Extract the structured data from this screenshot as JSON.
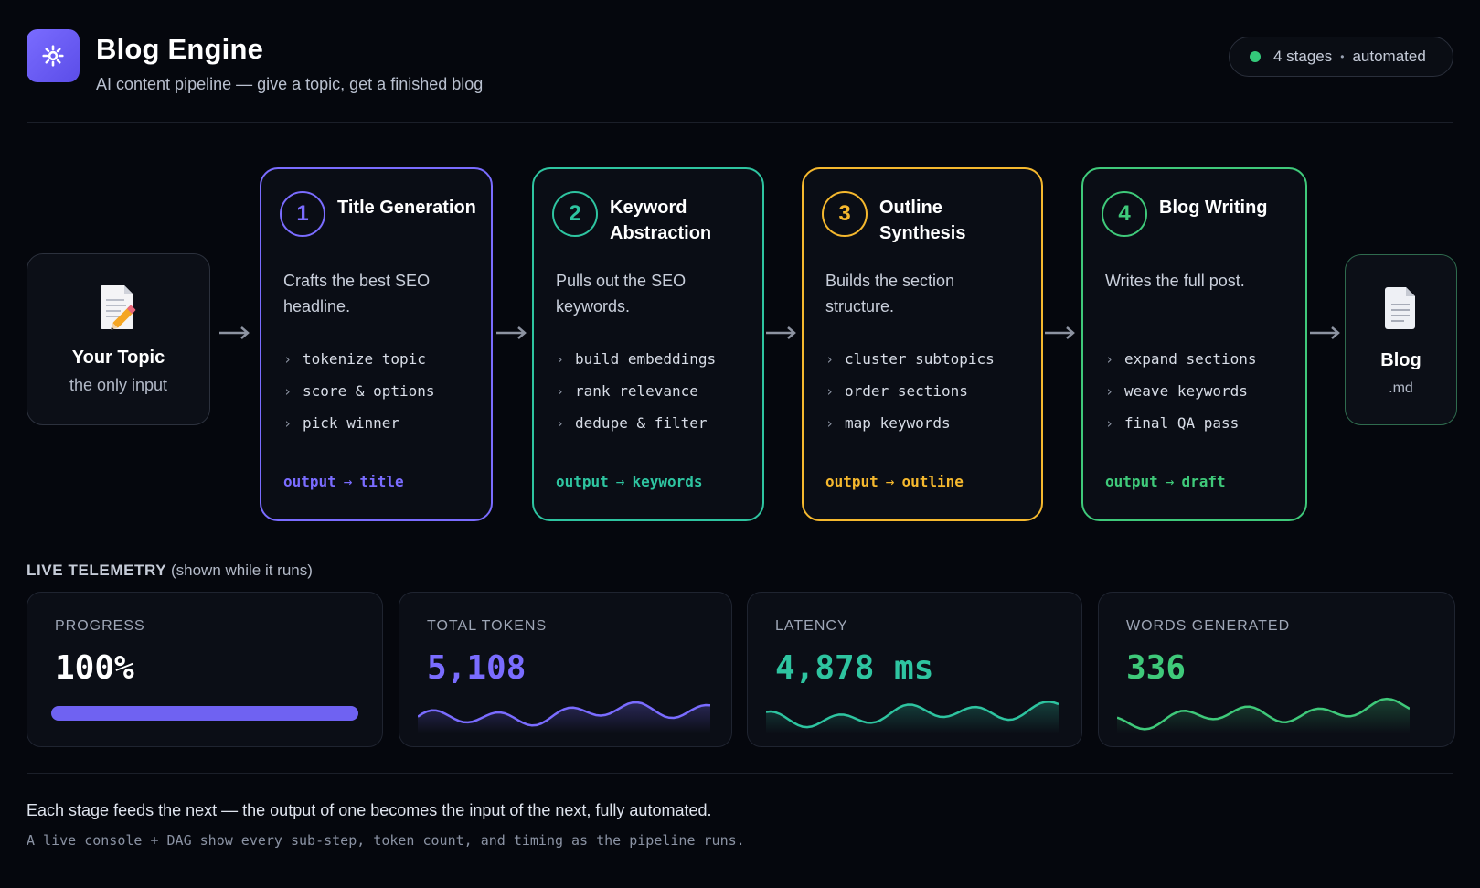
{
  "header": {
    "title": "Blog Engine",
    "subtitle": "AI content pipeline — give a topic, get a finished blog",
    "logo_icon": "gear-icon",
    "status": {
      "stages": "4 stages",
      "separator": "•",
      "mode": "automated",
      "dot_color": "#34c97a"
    }
  },
  "pipeline": {
    "input": {
      "icon": "memo-pencil-icon",
      "label": "Your Topic",
      "sub": "the only input"
    },
    "stages": [
      {
        "number": "1",
        "title": "Title Generation",
        "color": "#7a6cff",
        "description": "Crafts the best SEO headline.",
        "steps": [
          "tokenize topic",
          "score & options",
          "pick winner"
        ],
        "output_label": "output",
        "output_arrow": "→",
        "output_value": "title"
      },
      {
        "number": "2",
        "title": "Keyword Abstraction",
        "color": "#2ec4a0",
        "description": "Pulls out the SEO keywords.",
        "steps": [
          "build embeddings",
          "rank relevance",
          "dedupe & filter"
        ],
        "output_label": "output",
        "output_arrow": "→",
        "output_value": "keywords"
      },
      {
        "number": "3",
        "title": "Outline Synthesis",
        "color": "#f5b82e",
        "description": "Builds the section structure.",
        "steps": [
          "cluster subtopics",
          "order sections",
          "map keywords"
        ],
        "output_label": "output",
        "output_arrow": "→",
        "output_value": "outline"
      },
      {
        "number": "4",
        "title": "Blog Writing",
        "color": "#3fc97a",
        "description": "Writes the full post.",
        "steps": [
          "expand sections",
          "weave keywords",
          "final QA pass"
        ],
        "output_label": "output",
        "output_arrow": "→",
        "output_value": "draft"
      }
    ],
    "output": {
      "icon": "document-icon",
      "label": "Blog",
      "sub": ".md"
    },
    "arrow_icon": "arrow-right-icon"
  },
  "telemetry": {
    "heading": "LIVE TELEMETRY",
    "heading_note": "(shown while it runs)",
    "progress": {
      "label": "PROGRESS",
      "value": "100%",
      "fraction": 1.0,
      "color": "#6f62f2"
    },
    "tokens": {
      "label": "TOTAL TOKENS",
      "value": "5,108",
      "color": "#7a6cff"
    },
    "latency": {
      "label": "LATENCY",
      "value": "4,878 ms",
      "color": "#2ec4a0"
    },
    "words": {
      "label": "WORDS GENERATED",
      "value": "336",
      "color": "#3fc97a"
    }
  },
  "footer": {
    "line1": "Each stage feeds the next — the output of one becomes the input of the next, fully automated.",
    "line2": "A live console + DAG show every sub-step, token count, and timing as the pipeline runs."
  }
}
